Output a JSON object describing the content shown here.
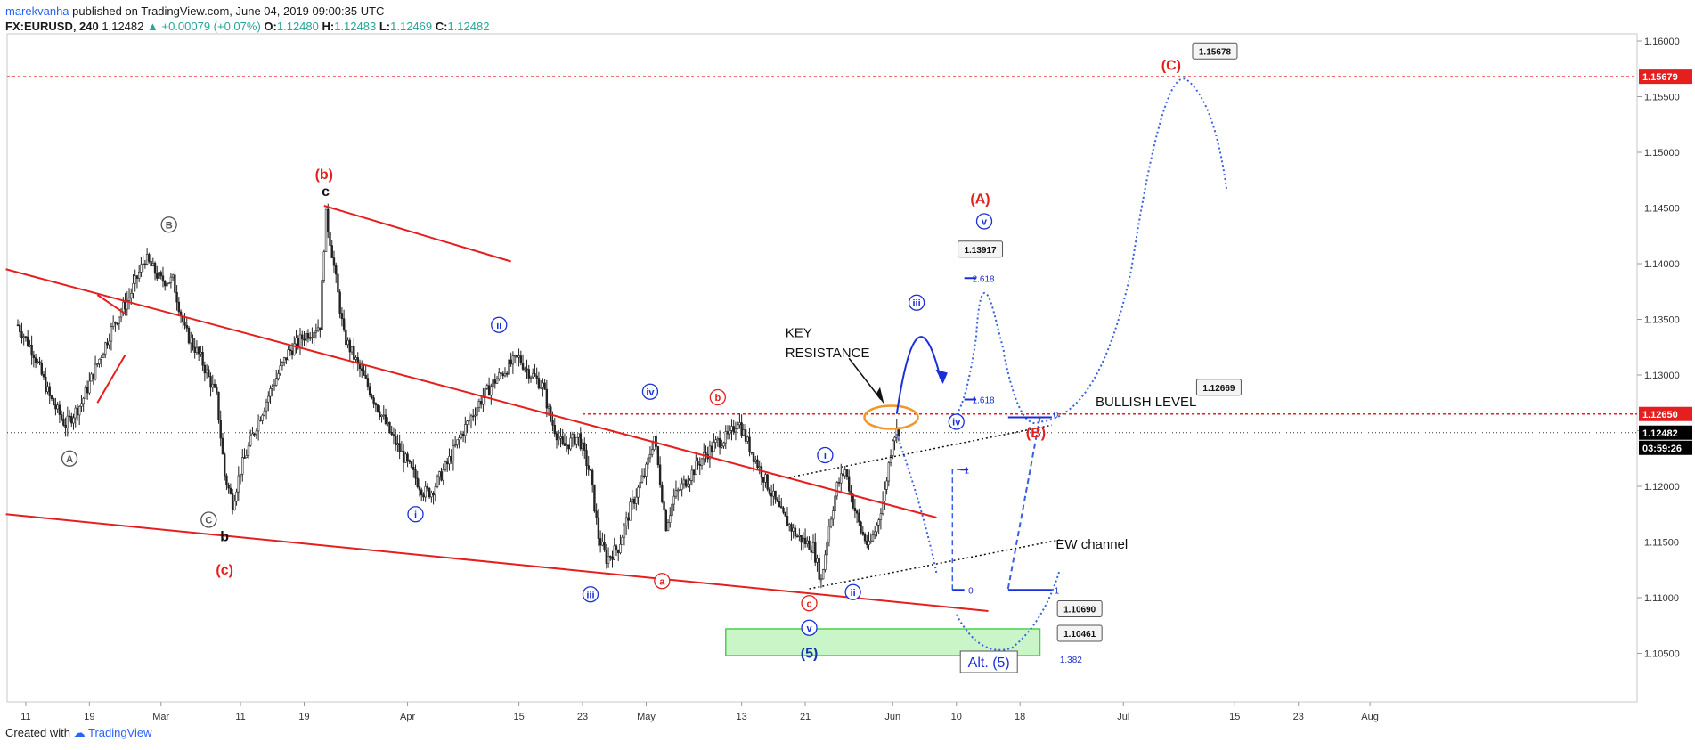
{
  "header": {
    "author": "marekvanha",
    "published_text": "published on TradingView.com, June 04, 2019 09:00:35 UTC",
    "symbol": "FX:EURUSD, 240",
    "last": "1.12482",
    "change": "▲ +0.00079 (+0.07%)",
    "o_label": "O:",
    "o": "1.12480",
    "h_label": "H:",
    "h": "1.12483",
    "l_label": "L:",
    "l": "1.12469",
    "c_label": "C:",
    "c": "1.12482"
  },
  "footer": {
    "created_with": "Created with",
    "brand": "TradingView"
  },
  "colors": {
    "red": "#e51e1e",
    "blue": "#1a2fd6",
    "dotblue": "#3a5fe0",
    "green_fill": "#c9f5c9",
    "green_stroke": "#4cd04c",
    "orange": "#f0962a"
  },
  "chart_data": {
    "type": "candlestick",
    "ylim": [
      1.1,
      1.16
    ],
    "y_ticks": [
      "1.16000",
      "1.15500",
      "1.15000",
      "1.14500",
      "1.14000",
      "1.13500",
      "1.13000",
      "1.12500",
      "1.12000",
      "1.11500",
      "1.11000",
      "1.10500"
    ],
    "x_ticks": [
      {
        "label": "11",
        "x": 1
      },
      {
        "label": "19",
        "x": 9
      },
      {
        "label": "Mar",
        "x": 18
      },
      {
        "label": "11",
        "x": 28
      },
      {
        "label": "19",
        "x": 36
      },
      {
        "label": "Apr",
        "x": 49
      },
      {
        "label": "15",
        "x": 63
      },
      {
        "label": "23",
        "x": 71
      },
      {
        "label": "May",
        "x": 79
      },
      {
        "label": "13",
        "x": 91
      },
      {
        "label": "21",
        "x": 99
      },
      {
        "label": "Jun",
        "x": 110
      },
      {
        "label": "10",
        "x": 118
      },
      {
        "label": "18",
        "x": 126
      },
      {
        "label": "Jul",
        "x": 139
      },
      {
        "label": "15",
        "x": 153
      },
      {
        "label": "23",
        "x": 161
      },
      {
        "label": "Aug",
        "x": 170
      }
    ],
    "price_path": [
      [
        0,
        1.1345
      ],
      [
        2,
        1.132
      ],
      [
        4,
        1.128
      ],
      [
        6,
        1.1255
      ],
      [
        8,
        1.1275
      ],
      [
        10,
        1.131
      ],
      [
        12,
        1.1345
      ],
      [
        14,
        1.137
      ],
      [
        16,
        1.1405
      ],
      [
        18,
        1.1385
      ],
      [
        19.5,
        1.1385
      ],
      [
        21,
        1.134
      ],
      [
        23,
        1.1315
      ],
      [
        25,
        1.128
      ],
      [
        26,
        1.121
      ],
      [
        27,
        1.1185
      ],
      [
        28,
        1.1215
      ],
      [
        30,
        1.1255
      ],
      [
        32,
        1.129
      ],
      [
        34,
        1.132
      ],
      [
        36,
        1.1335
      ],
      [
        38,
        1.1345
      ],
      [
        38.7,
        1.1445
      ],
      [
        39.5,
        1.141
      ],
      [
        41,
        1.1335
      ],
      [
        43,
        1.1305
      ],
      [
        45,
        1.1275
      ],
      [
        47,
        1.1245
      ],
      [
        49,
        1.122
      ],
      [
        51,
        1.1195
      ],
      [
        52,
        1.1195
      ],
      [
        54,
        1.122
      ],
      [
        56,
        1.125
      ],
      [
        58,
        1.1275
      ],
      [
        60,
        1.1295
      ],
      [
        62,
        1.131
      ],
      [
        63,
        1.1315
      ],
      [
        64,
        1.1305
      ],
      [
        66,
        1.129
      ],
      [
        67,
        1.126
      ],
      [
        68.5,
        1.1235
      ],
      [
        70.5,
        1.1245
      ],
      [
        72,
        1.121
      ],
      [
        73,
        1.1155
      ],
      [
        74,
        1.1135
      ],
      [
        75.5,
        1.1145
      ],
      [
        77,
        1.118
      ],
      [
        79,
        1.1215
      ],
      [
        80,
        1.1245
      ],
      [
        81.5,
        1.1165
      ],
      [
        82.5,
        1.119
      ],
      [
        84,
        1.1205
      ],
      [
        86,
        1.1225
      ],
      [
        88,
        1.124
      ],
      [
        89.5,
        1.1245
      ],
      [
        90.5,
        1.126
      ],
      [
        92,
        1.1235
      ],
      [
        94,
        1.1205
      ],
      [
        96,
        1.1175
      ],
      [
        98,
        1.1155
      ],
      [
        100,
        1.1145
      ],
      [
        101,
        1.1115
      ],
      [
        102,
        1.1165
      ],
      [
        103,
        1.12
      ],
      [
        104,
        1.1215
      ],
      [
        105,
        1.1185
      ],
      [
        106,
        1.116
      ],
      [
        107,
        1.1145
      ],
      [
        108,
        1.1165
      ],
      [
        109,
        1.1195
      ],
      [
        110,
        1.1245
      ],
      [
        110.8,
        1.1252
      ]
    ],
    "price_levels": [
      {
        "value": 1.15679,
        "label": "1.15679",
        "style": "red-dotted"
      },
      {
        "value": 1.1265,
        "label": "1.12650",
        "style": "red-dotted"
      },
      {
        "value": 1.12482,
        "label": "1.12482",
        "style": "black-dotted"
      }
    ],
    "countdown": "03:59:26",
    "wave_labels": [
      {
        "text": "(b)",
        "x": 38.5,
        "y": 1.148,
        "color": "red"
      },
      {
        "text": "c",
        "x": 38.7,
        "y": 1.1465,
        "color": "black"
      },
      {
        "text": "B",
        "x": 19,
        "y": 1.1435,
        "color": "gray",
        "circle": true
      },
      {
        "text": "A",
        "x": 6.5,
        "y": 1.1225,
        "color": "gray",
        "circle": true
      },
      {
        "text": "C",
        "x": 24,
        "y": 1.117,
        "color": "gray",
        "circle": true
      },
      {
        "text": "b",
        "x": 26,
        "y": 1.1155,
        "color": "black"
      },
      {
        "text": "(c)",
        "x": 26,
        "y": 1.1125,
        "color": "red"
      },
      {
        "text": "ii",
        "x": 60.5,
        "y": 1.1345,
        "color": "blue",
        "circle": true
      },
      {
        "text": "i",
        "x": 50,
        "y": 1.1175,
        "color": "blue",
        "circle": true
      },
      {
        "text": "iii",
        "x": 72,
        "y": 1.1103,
        "color": "blue",
        "circle": true
      },
      {
        "text": "iv",
        "x": 79.5,
        "y": 1.1285,
        "color": "blue",
        "circle": true
      },
      {
        "text": "b",
        "x": 88,
        "y": 1.128,
        "color": "red",
        "circle": true
      },
      {
        "text": "a",
        "x": 81,
        "y": 1.1115,
        "color": "red",
        "circle": true
      },
      {
        "text": "c",
        "x": 99.5,
        "y": 1.1095,
        "color": "red",
        "circle": true
      },
      {
        "text": "v",
        "x": 99.5,
        "y": 1.1073,
        "color": "blue",
        "circle": true
      },
      {
        "text": "(5)",
        "x": 99.5,
        "y": 1.105,
        "color": "darkblue"
      },
      {
        "text": "i",
        "x": 101.5,
        "y": 1.1228,
        "color": "blue",
        "circle": true
      },
      {
        "text": "ii",
        "x": 105,
        "y": 1.1105,
        "color": "blue",
        "circle": true
      },
      {
        "text": "iii",
        "x": 113,
        "y": 1.1365,
        "color": "blue",
        "circle": true
      },
      {
        "text": "iv",
        "x": 118,
        "y": 1.1258,
        "color": "blue",
        "circle": true
      },
      {
        "text": "(A)",
        "x": 121,
        "y": 1.1458,
        "color": "red"
      },
      {
        "text": "v",
        "x": 121.5,
        "y": 1.1438,
        "color": "blue",
        "circle": true
      },
      {
        "text": "(B)",
        "x": 128,
        "y": 1.1248,
        "color": "red"
      },
      {
        "text": "(C)",
        "x": 145,
        "y": 1.1578,
        "color": "red"
      }
    ],
    "callouts": [
      {
        "text": "1.15678",
        "x": 150.5,
        "y": 1.1591
      },
      {
        "text": "1.13917",
        "x": 121,
        "y": 1.1413
      },
      {
        "text": "1.12669",
        "x": 151,
        "y": 1.1289
      },
      {
        "text": "1.10690",
        "x": 133.5,
        "y": 1.109
      },
      {
        "text": "1.10461",
        "x": 133.5,
        "y": 1.1068
      }
    ],
    "fib_labels": [
      {
        "text": "2.618",
        "x": 120,
        "y": 1.1387
      },
      {
        "text": "1.618",
        "x": 120,
        "y": 1.1278
      },
      {
        "text": "1",
        "x": 119,
        "y": 1.1215
      },
      {
        "text": "0",
        "x": 119.5,
        "y": 1.1107
      },
      {
        "text": "0",
        "x": 130.2,
        "y": 1.1265
      },
      {
        "text": "1",
        "x": 130.3,
        "y": 1.1107
      },
      {
        "text": "1.382",
        "x": 131,
        "y": 1.1045
      }
    ],
    "annotations": {
      "key_resistance": [
        "KEY",
        "RESISTANCE"
      ],
      "bullish_level": "BULLISH LEVEL",
      "ew_channel": "EW channel",
      "alt5": "Alt. (5)"
    }
  }
}
